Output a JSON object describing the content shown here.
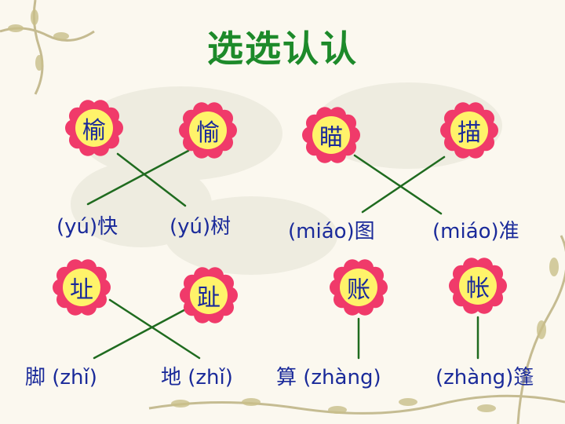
{
  "title": "选选认认",
  "colors": {
    "title": "#1d8a2a",
    "text": "#1a2a9a",
    "petal": "#f03a6a",
    "center": "#fff36a",
    "line": "#1f6b1f"
  },
  "flowers": [
    {
      "char": "榆"
    },
    {
      "char": "愉"
    },
    {
      "char": "瞄"
    },
    {
      "char": "描"
    },
    {
      "char": "址"
    },
    {
      "char": "趾"
    },
    {
      "char": "账"
    },
    {
      "char": "帐"
    }
  ],
  "words": [
    {
      "text": "(yú)快"
    },
    {
      "text": "(yú)树"
    },
    {
      "text": "(miáo)图"
    },
    {
      "text": "(miáo)准"
    },
    {
      "text": "脚 (zhǐ)"
    },
    {
      "text": "地 (zhǐ)"
    },
    {
      "text": "算 (zhàng)"
    },
    {
      "text": "(zhàng)篷"
    }
  ]
}
